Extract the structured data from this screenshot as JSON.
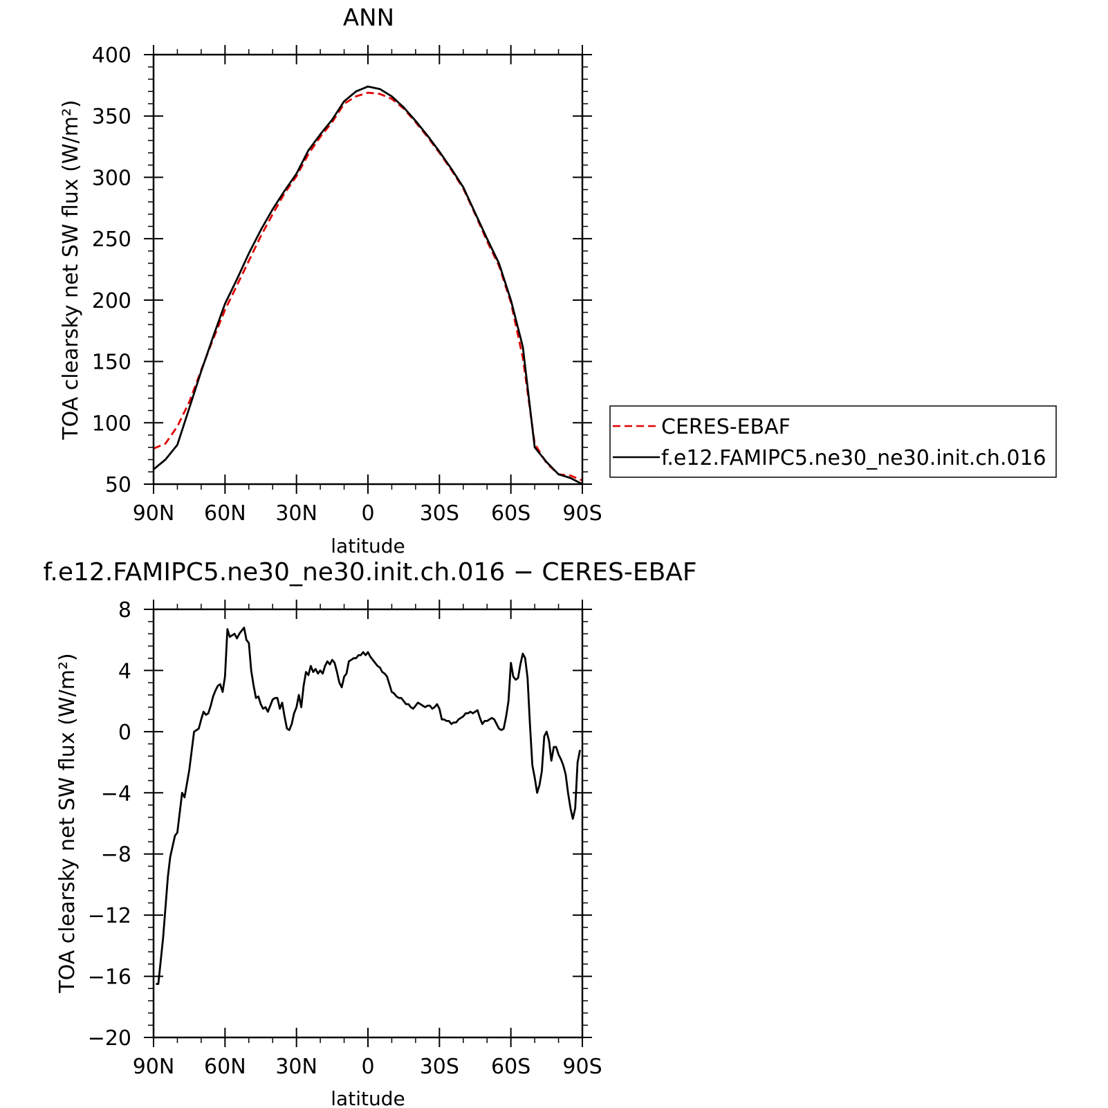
{
  "chart_data": [
    {
      "type": "line",
      "title": "ANN",
      "xlabel": "latitude",
      "ylabel": "TOA clearsky net SW flux (W/m²)",
      "xlim": [
        90,
        -90
      ],
      "ylim": [
        50,
        400
      ],
      "yticks": [
        50,
        100,
        150,
        200,
        250,
        300,
        350,
        400
      ],
      "xticks": [
        90,
        60,
        30,
        0,
        -30,
        -60,
        -90
      ],
      "xtick_labels": [
        "90N",
        "60N",
        "30N",
        "0",
        "30S",
        "60S",
        "90S"
      ],
      "legend_position": "right",
      "x": [
        90,
        85,
        80,
        75,
        70,
        65,
        60,
        55,
        50,
        45,
        40,
        35,
        30,
        25,
        20,
        15,
        10,
        5,
        0,
        -5,
        -10,
        -15,
        -20,
        -25,
        -30,
        -35,
        -40,
        -45,
        -50,
        -55,
        -60,
        -65,
        -70,
        -75,
        -80,
        -85,
        -90
      ],
      "series": [
        {
          "name": "CERES-EBAF",
          "color": "#e00000",
          "dash": "dashed",
          "values": [
            79,
            83,
            97,
            117,
            143,
            168,
            192,
            212,
            232,
            252,
            270,
            287,
            301,
            319,
            333,
            345,
            360,
            366,
            369,
            368,
            364,
            356,
            345,
            333,
            320,
            306,
            291,
            270,
            248,
            228,
            198,
            153,
            83,
            67,
            58,
            57,
            53
          ]
        },
        {
          "name": "f.e12.FAMIPC5.ne30_ne30.init.ch.016",
          "color": "#000000",
          "dash": "solid",
          "values": [
            62,
            70,
            82,
            112,
            142,
            170,
            197,
            217,
            238,
            257,
            274,
            289,
            303,
            322,
            335,
            347,
            362,
            370,
            374,
            372,
            366,
            357,
            346,
            334,
            321,
            307,
            292,
            271,
            250,
            230,
            200,
            162,
            80,
            68,
            58,
            55,
            50
          ]
        }
      ]
    },
    {
      "type": "line",
      "title": "f.e12.FAMIPC5.ne30_ne30.init.ch.016 − CERES-EBAF",
      "xlabel": "latitude",
      "ylabel": "TOA clearsky net SW flux (W/m²)",
      "xlim": [
        90,
        -90
      ],
      "ylim": [
        -20,
        8
      ],
      "yticks": [
        -20,
        -16,
        -12,
        -8,
        -4,
        0,
        4,
        8
      ],
      "ytick_labels": [
        "−20",
        "−16",
        "−12",
        "−8",
        "−4",
        "0",
        "4",
        "8"
      ],
      "xticks": [
        90,
        60,
        30,
        0,
        -30,
        -60,
        -90
      ],
      "xtick_labels": [
        "90N",
        "60N",
        "30N",
        "0",
        "30S",
        "60S",
        "90S"
      ],
      "x": [
        89,
        88,
        86,
        84,
        83,
        81,
        80,
        78,
        77,
        75,
        73,
        71,
        70,
        69,
        68,
        67,
        66,
        65,
        64,
        63,
        62,
        61,
        60,
        59,
        58,
        57,
        56,
        55,
        54,
        53,
        52,
        51,
        50,
        49,
        48,
        47,
        46,
        45,
        44,
        43,
        42,
        41,
        40,
        39,
        38,
        37,
        36,
        35,
        34,
        33,
        32,
        31,
        30,
        29,
        28,
        27,
        26,
        25,
        24,
        23,
        22,
        21,
        20,
        19,
        18,
        17,
        16,
        15,
        14,
        13,
        12,
        11,
        10,
        9,
        8,
        7,
        6,
        5,
        4,
        3,
        2,
        1,
        0,
        -1,
        -2,
        -3,
        -4,
        -5,
        -6,
        -7,
        -8,
        -9,
        -10,
        -11,
        -12,
        -13,
        -14,
        -15,
        -16,
        -17,
        -18,
        -19,
        -20,
        -21,
        -22,
        -23,
        -24,
        -25,
        -26,
        -27,
        -28,
        -29,
        -30,
        -31,
        -32,
        -33,
        -34,
        -35,
        -36,
        -37,
        -38,
        -39,
        -40,
        -41,
        -42,
        -43,
        -44,
        -45,
        -46,
        -47,
        -48,
        -49,
        -50,
        -51,
        -52,
        -53,
        -54,
        -55,
        -56,
        -57,
        -58,
        -59,
        -60,
        -61,
        -62,
        -63,
        -64,
        -65,
        -66,
        -67,
        -68,
        -69,
        -70,
        -71,
        -72,
        -73,
        -74,
        -75,
        -76,
        -77,
        -78,
        -79,
        -80,
        -81,
        -82,
        -83,
        -84,
        -85,
        -86,
        -87,
        -88,
        -89
      ],
      "series": [
        {
          "name": "f.e12.FAMIPC5.ne30_ne30.init.ch.016 − CERES-EBAF",
          "color": "#000000",
          "dash": "solid",
          "values": [
            -16.5,
            -16.5,
            -13.5,
            -9.5,
            -8.2,
            -6.8,
            -6.6,
            -4.0,
            -4.3,
            -2.5,
            0,
            0.2,
            0.8,
            1.3,
            1.1,
            1.2,
            1.7,
            2.3,
            2.7,
            3.0,
            3.1,
            2.6,
            3.6,
            6.7,
            6.2,
            6.3,
            6.4,
            6.1,
            6.4,
            6.6,
            6.8,
            6.0,
            5.8,
            4.0,
            3.0,
            2.2,
            2.3,
            1.8,
            1.5,
            1.6,
            1.3,
            1.7,
            2.1,
            2.2,
            2.2,
            1.5,
            1.9,
            1.0,
            0.2,
            0.1,
            0.5,
            1.2,
            1.6,
            2.4,
            1.6,
            3.0,
            3.9,
            3.7,
            4.3,
            3.9,
            4.1,
            3.8,
            4.0,
            3.8,
            4.3,
            4.6,
            4.4,
            4.7,
            4.5,
            3.9,
            3.2,
            2.9,
            3.6,
            3.8,
            4.6,
            4.7,
            4.8,
            4.8,
            5.0,
            5.0,
            5.2,
            5.0,
            5.2,
            4.9,
            4.7,
            4.5,
            4.3,
            4.2,
            3.9,
            3.8,
            3.6,
            3.1,
            2.6,
            2.5,
            2.3,
            2.2,
            2.2,
            2.0,
            1.8,
            1.8,
            1.6,
            1.5,
            1.7,
            1.9,
            1.8,
            1.7,
            1.6,
            1.7,
            1.7,
            1.5,
            1.6,
            1.8,
            1.5,
            0.8,
            0.8,
            0.7,
            0.7,
            0.5,
            0.6,
            0.6,
            0.8,
            0.9,
            1.0,
            1.2,
            1.2,
            1.3,
            1.2,
            1.3,
            1.4,
            0.9,
            0.5,
            0.7,
            0.7,
            0.8,
            0.9,
            0.8,
            0.5,
            0.2,
            0.1,
            0.2,
            1.0,
            2.0,
            4.5,
            3.6,
            3.4,
            3.5,
            4.4,
            5.1,
            4.8,
            3.5,
            0.5,
            -2.2,
            -3.0,
            -4.0,
            -3.5,
            -2.6,
            -0.3,
            0.0,
            -0.6,
            -1.9,
            -1.0,
            -1.0,
            -1.5,
            -1.8,
            -2.2,
            -2.8,
            -4.0,
            -5.0,
            -5.7,
            -5.0,
            -2.0,
            -1.2
          ]
        }
      ]
    }
  ]
}
